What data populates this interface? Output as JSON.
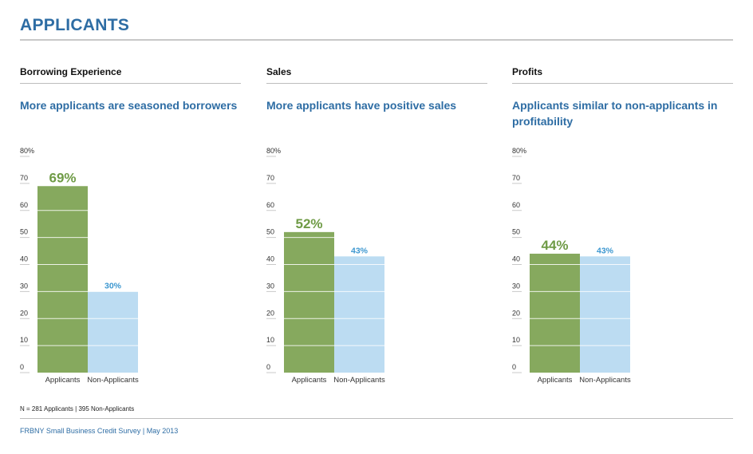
{
  "page": {
    "title": "APPLICANTS",
    "note": "N = 281 Applicants  |  395 Non-Applicants",
    "footer": "FRBNY Small Business Credit Survey  |  May 2013"
  },
  "colors": {
    "applicants": "#86a95e",
    "non_applicants": "#bcdcf2",
    "applicants_label": "#6f9b46",
    "non_applicants_label": "#3c97d0",
    "title": "#2e6da4"
  },
  "panels": [
    {
      "heading": "Borrowing Experience",
      "subtitle": "More applicants are seasoned borrowers"
    },
    {
      "heading": "Sales",
      "subtitle": "More applicants have positive sales"
    },
    {
      "heading": "Profits",
      "subtitle": "Applicants similar to non-applicants in profitability"
    }
  ],
  "chart_data": [
    {
      "type": "bar",
      "categories": [
        "Applicants",
        "Non-Applicants"
      ],
      "values": [
        69,
        30
      ],
      "value_labels": [
        "69%",
        "30%"
      ],
      "yticks": [
        "0",
        "10",
        "20",
        "30",
        "40",
        "50",
        "60",
        "70",
        "80%"
      ],
      "ylim": [
        0,
        80
      ],
      "grid": true
    },
    {
      "type": "bar",
      "categories": [
        "Applicants",
        "Non-Applicants"
      ],
      "values": [
        52,
        43
      ],
      "value_labels": [
        "52%",
        "43%"
      ],
      "yticks": [
        "0",
        "10",
        "20",
        "30",
        "40",
        "50",
        "60",
        "70",
        "80%"
      ],
      "ylim": [
        0,
        80
      ],
      "grid": true
    },
    {
      "type": "bar",
      "categories": [
        "Applicants",
        "Non-Applicants"
      ],
      "values": [
        44,
        43
      ],
      "value_labels": [
        "44%",
        "43%"
      ],
      "yticks": [
        "0",
        "10",
        "20",
        "30",
        "40",
        "50",
        "60",
        "70",
        "80%"
      ],
      "ylim": [
        0,
        80
      ],
      "grid": true
    }
  ]
}
